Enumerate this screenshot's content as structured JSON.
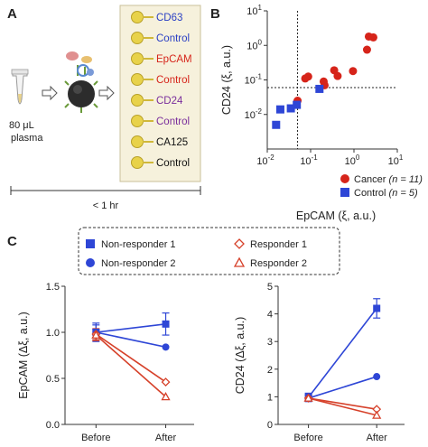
{
  "panels": {
    "a": {
      "letter": "A",
      "tube_volume": "80 μL",
      "tube_label": "plasma",
      "time_label": "< 1 hr",
      "chip_rows": [
        {
          "label": "CD63",
          "color": "#2a3fc4"
        },
        {
          "label": "Control",
          "color": "#2a3fc4"
        },
        {
          "label": "EpCAM",
          "color": "#d6241a"
        },
        {
          "label": "Control",
          "color": "#d6241a"
        },
        {
          "label": "CD24",
          "color": "#7a2e9c"
        },
        {
          "label": "Control",
          "color": "#7a2e9c"
        },
        {
          "label": "CA125",
          "color": "#111111"
        },
        {
          "label": "Control",
          "color": "#111111"
        }
      ]
    },
    "b": {
      "letter": "B",
      "legend": {
        "cancer": {
          "label": "Cancer",
          "n": "(n = 11)"
        },
        "control": {
          "label": "Control",
          "n": "(n = 5)"
        }
      }
    },
    "c": {
      "letter": "C",
      "legend": [
        {
          "label": "Non-responder 1",
          "marker": "square-filled",
          "color": "#2e46d6"
        },
        {
          "label": "Responder 1",
          "marker": "diamond-open",
          "color": "#d6412a"
        },
        {
          "label": "Non-responder 2",
          "marker": "circle-filled",
          "color": "#2e46d6"
        },
        {
          "label": "Responder 2",
          "marker": "triangle-open",
          "color": "#d6412a"
        }
      ]
    }
  },
  "chart_data": [
    {
      "type": "scatter",
      "panel": "B",
      "xlabel": "EpCAM (ξ, a.u.)",
      "ylabel": "CD24 (ξ, a.u.)",
      "xscale": "log",
      "yscale": "log",
      "xlim": [
        0.01,
        10
      ],
      "ylim": [
        0.001,
        10
      ],
      "xticks": [
        {
          "v": 0.01,
          "base": "10",
          "exp": "-2"
        },
        {
          "v": 0.1,
          "base": "10",
          "exp": "-1"
        },
        {
          "v": 1,
          "base": "10",
          "exp": "0"
        },
        {
          "v": 10,
          "base": "10",
          "exp": "1"
        }
      ],
      "yticks": [
        {
          "v": 0.01,
          "base": "10",
          "exp": "-2"
        },
        {
          "v": 0.1,
          "base": "10",
          "exp": "-1"
        },
        {
          "v": 1,
          "base": "10",
          "exp": "0"
        },
        {
          "v": 10,
          "base": "10",
          "exp": "1"
        }
      ],
      "thresholds": {
        "x": 0.05,
        "y": 0.06
      },
      "series": [
        {
          "name": "Cancer",
          "color": "#d6241a",
          "marker": "circle",
          "points": [
            [
              0.05,
              0.025
            ],
            [
              0.075,
              0.11
            ],
            [
              0.088,
              0.125
            ],
            [
              0.2,
              0.09
            ],
            [
              0.21,
              0.07
            ],
            [
              0.35,
              0.19
            ],
            [
              0.42,
              0.13
            ],
            [
              0.95,
              0.18
            ],
            [
              2.0,
              0.75
            ],
            [
              2.2,
              1.8
            ],
            [
              2.8,
              1.7
            ]
          ]
        },
        {
          "name": "Control",
          "color": "#2e46d6",
          "marker": "square",
          "points": [
            [
              0.016,
              0.005
            ],
            [
              0.02,
              0.014
            ],
            [
              0.035,
              0.015
            ],
            [
              0.048,
              0.019
            ],
            [
              0.16,
              0.055
            ]
          ]
        }
      ]
    },
    {
      "type": "line",
      "panel": "C-left",
      "ylabel": "EpCAM (Δξ, a.u.)",
      "categories": [
        "Before",
        "After"
      ],
      "ylim": [
        0,
        1.5
      ],
      "yticks": [
        "0.0",
        "0.5",
        "1.0",
        "1.5"
      ],
      "series": [
        {
          "name": "Non-responder 1",
          "color": "#2e46d6",
          "marker": "square-filled",
          "values": [
            1.0,
            1.09
          ],
          "errors": [
            0.1,
            0.12
          ]
        },
        {
          "name": "Non-responder 2",
          "color": "#2e46d6",
          "marker": "circle-filled",
          "values": [
            1.0,
            0.84
          ],
          "errors": [
            0.08,
            0
          ]
        },
        {
          "name": "Responder 1",
          "color": "#d6412a",
          "marker": "diamond-open",
          "values": [
            0.98,
            0.46
          ],
          "errors": [
            0.06,
            0
          ]
        },
        {
          "name": "Responder 2",
          "color": "#d6412a",
          "marker": "triangle-open",
          "values": [
            0.97,
            0.3
          ],
          "errors": [
            0.06,
            0
          ]
        }
      ]
    },
    {
      "type": "line",
      "panel": "C-right",
      "ylabel": "CD24 (Δξ, a.u.)",
      "categories": [
        "Before",
        "After"
      ],
      "ylim": [
        0,
        5
      ],
      "yticks": [
        "0",
        "1",
        "2",
        "3",
        "4",
        "5"
      ],
      "series": [
        {
          "name": "Non-responder 1",
          "color": "#2e46d6",
          "marker": "square-filled",
          "values": [
            0.98,
            4.2
          ],
          "errors": [
            0.15,
            0.35
          ]
        },
        {
          "name": "Non-responder 2",
          "color": "#2e46d6",
          "marker": "circle-filled",
          "values": [
            0.95,
            1.73
          ],
          "errors": [
            0.12,
            0
          ]
        },
        {
          "name": "Responder 1",
          "color": "#d6412a",
          "marker": "diamond-open",
          "values": [
            0.95,
            0.55
          ],
          "errors": [
            0.1,
            0
          ]
        },
        {
          "name": "Responder 2",
          "color": "#d6412a",
          "marker": "triangle-open",
          "values": [
            0.95,
            0.33
          ],
          "errors": [
            0.1,
            0
          ]
        }
      ]
    }
  ]
}
